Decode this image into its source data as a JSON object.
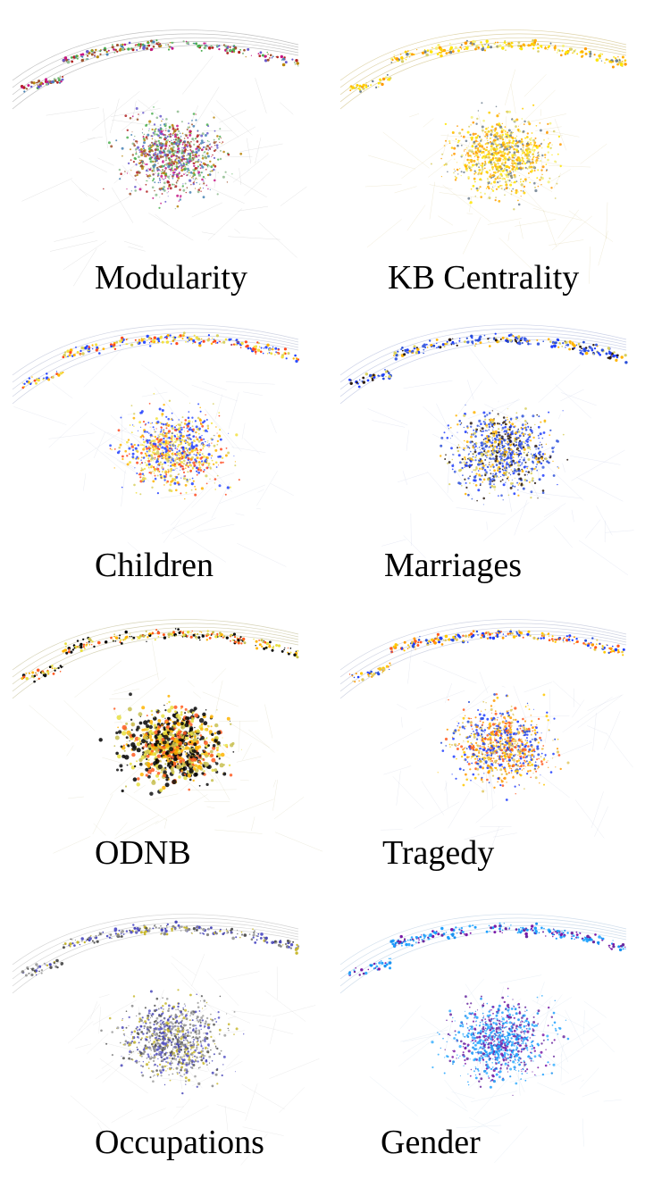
{
  "panels": [
    {
      "label": "Modularity",
      "palette": [
        "#4caf50",
        "#a0522d",
        "#b8860b",
        "#6a5acd",
        "#4682b4",
        "#c71585",
        "#8fbc8f",
        "#b22222"
      ],
      "edge_color": "#9a9a9a"
    },
    {
      "label": "KB Centrality",
      "palette": [
        "#ffe600",
        "#ffd000",
        "#ffb000",
        "#ff9a00",
        "#d9cf6a",
        "#708090",
        "#f5f07a"
      ],
      "edge_color": "#c9b870"
    },
    {
      "label": "Children",
      "palette": [
        "#1f3dff",
        "#f2e040",
        "#ffb400",
        "#ff4a20",
        "#d8d060",
        "#3050ff"
      ],
      "edge_color": "#b0b8d0"
    },
    {
      "label": "Marriages",
      "palette": [
        "#2a4fd8",
        "#1f3dff",
        "#d8d060",
        "#ffb400",
        "#2a1a10",
        "#4060e0"
      ],
      "edge_color": "#aab4d8"
    },
    {
      "label": "ODNB",
      "palette": [
        "#111111",
        "#000000",
        "#e8df40",
        "#ffb400",
        "#ff5a20",
        "#c8c050"
      ],
      "edge_color": "#bdb888"
    },
    {
      "label": "Tragedy",
      "palette": [
        "#1f3dff",
        "#ff9a00",
        "#ffc800",
        "#ff5a20",
        "#2a4fd8",
        "#e0c860"
      ],
      "edge_color": "#b0b8d0"
    },
    {
      "label": "Occupations",
      "palette": [
        "#4a48b8",
        "#c8b830",
        "#555555",
        "#888888",
        "#5a58c8",
        "#a0a0a0"
      ],
      "edge_color": "#b8b8b8"
    },
    {
      "label": "Gender",
      "palette": [
        "#1ea0ff",
        "#7a1aa8",
        "#3ab0ff",
        "#6a2aa0",
        "#1890f0"
      ],
      "edge_color": "#b0c8e0"
    }
  ]
}
